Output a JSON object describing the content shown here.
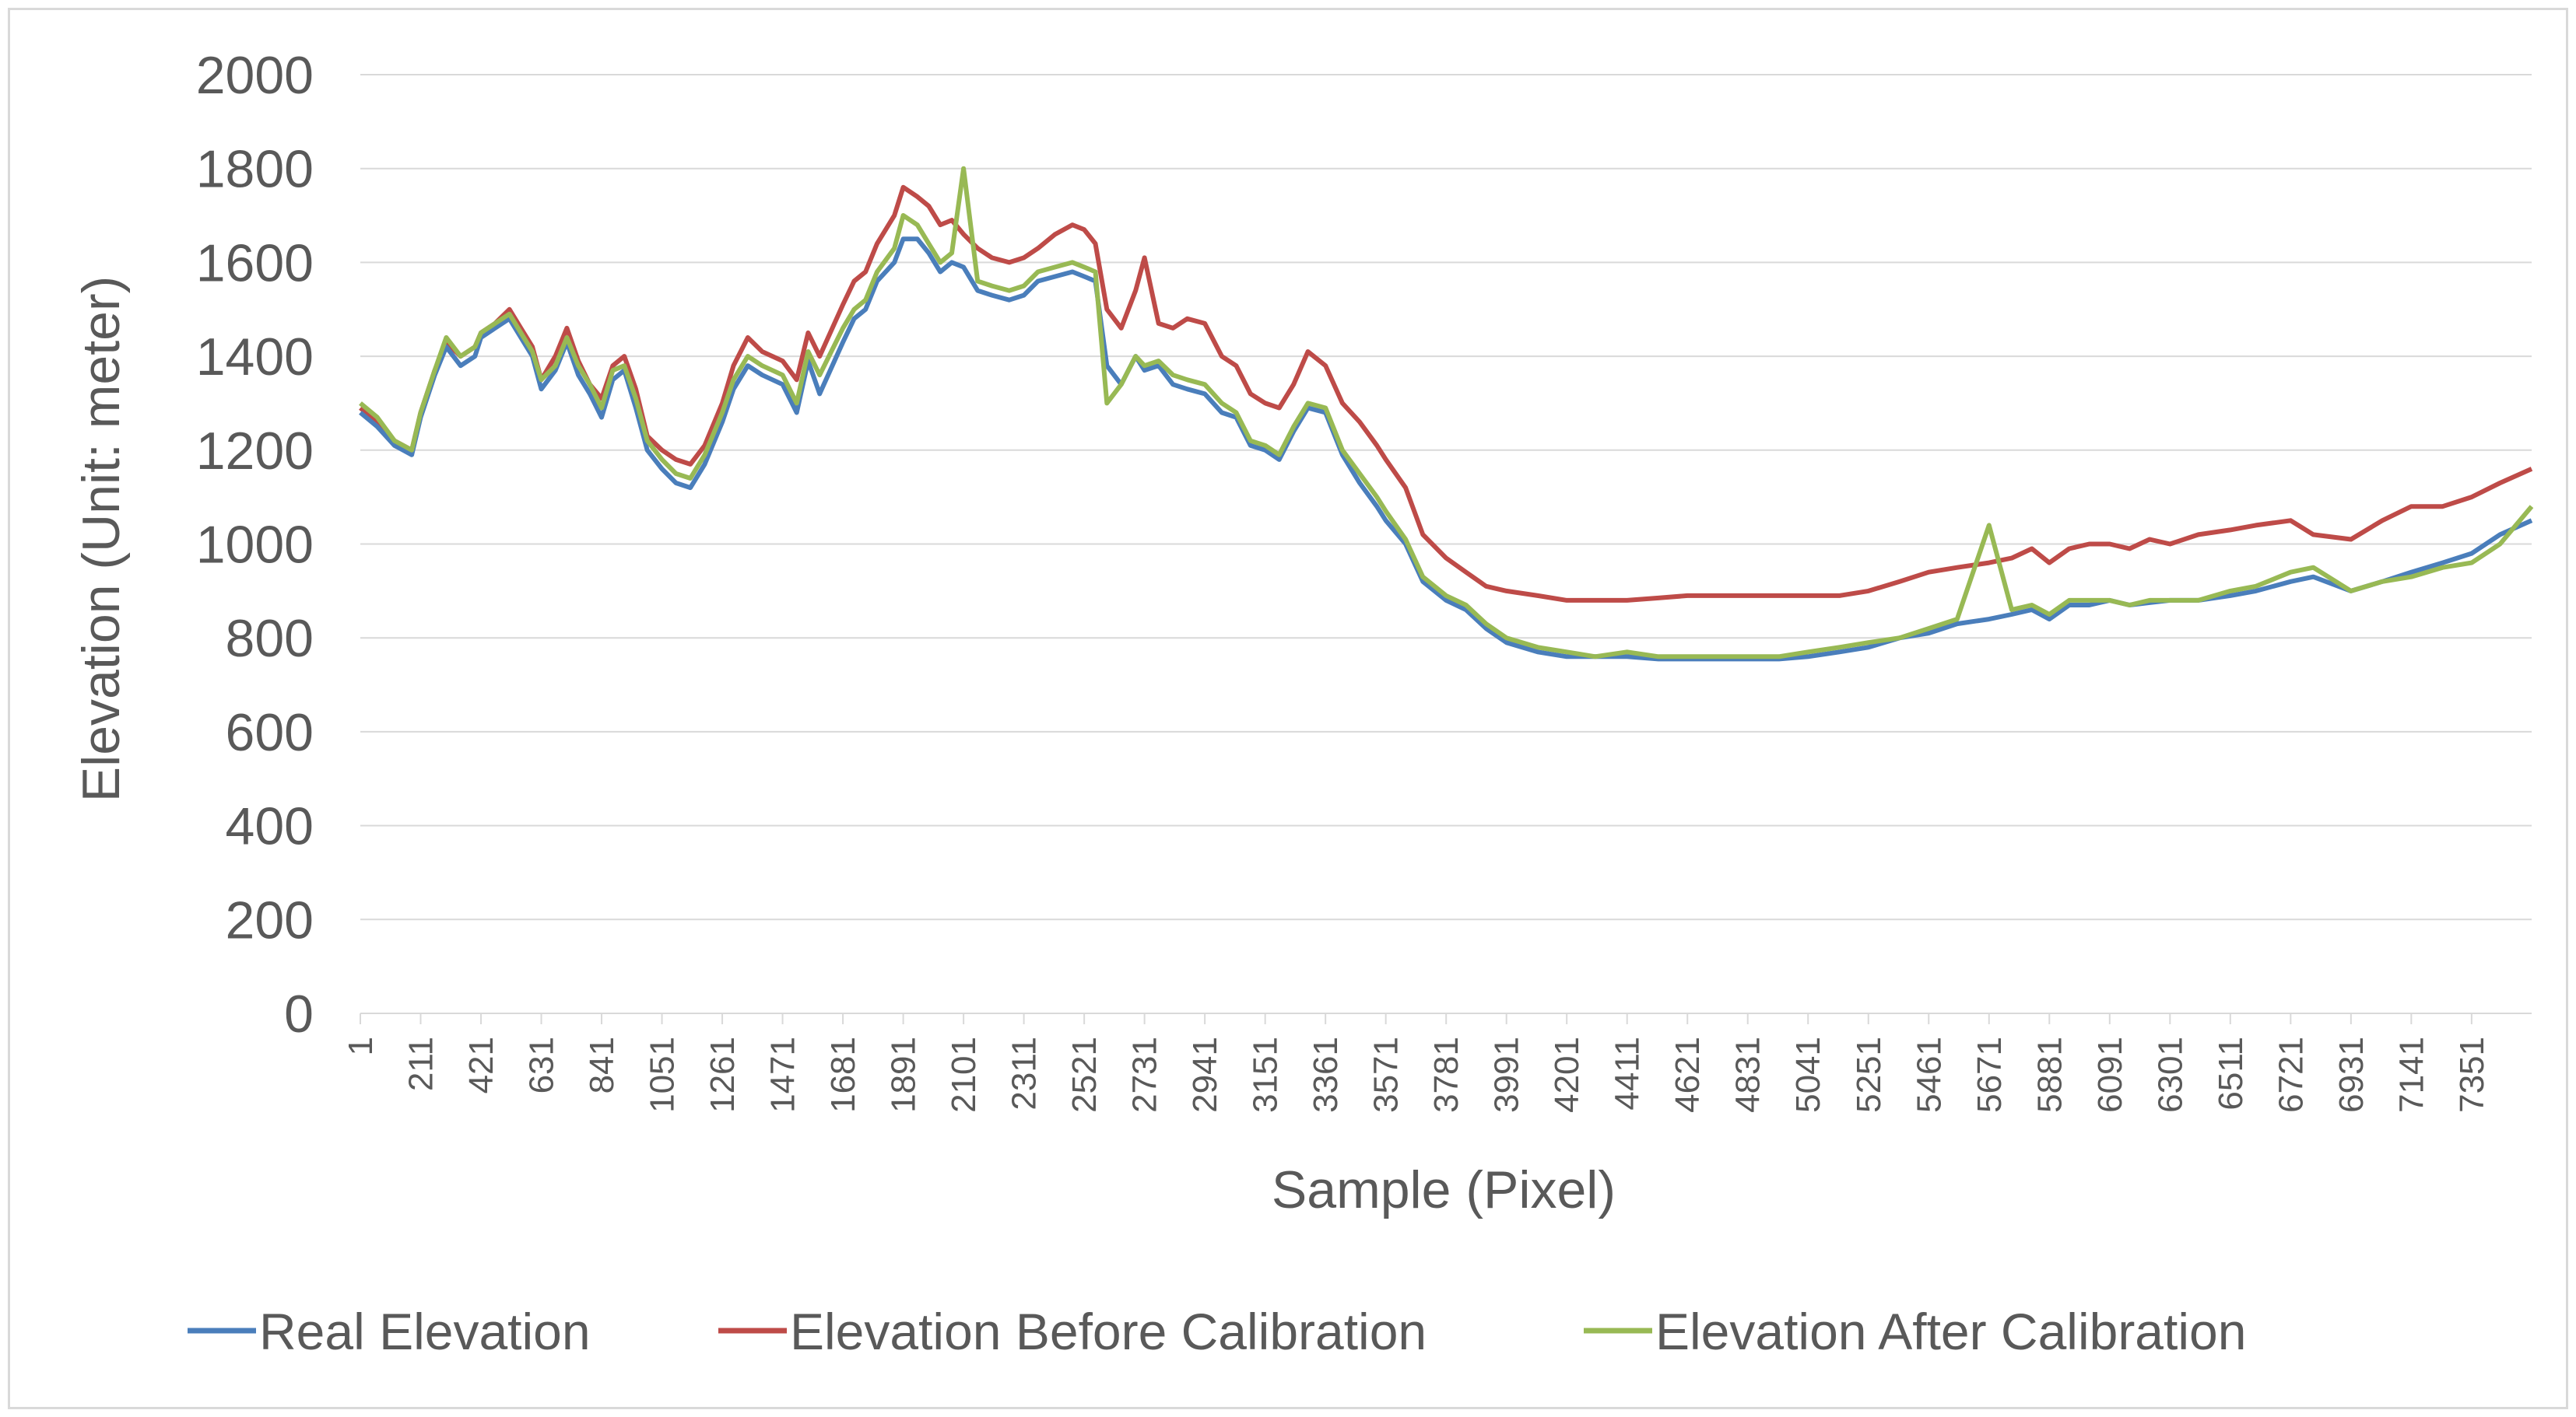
{
  "chart_data": {
    "type": "line",
    "title": "",
    "xlabel": "Sample (Pixel)",
    "ylabel": "Elevation (Unit: meter)",
    "ylim": [
      0,
      2000
    ],
    "xlim": [
      1,
      7560
    ],
    "yticks": [
      0,
      200,
      400,
      600,
      800,
      1000,
      1200,
      1400,
      1600,
      1800,
      2000
    ],
    "xticks": [
      "1",
      "211",
      "421",
      "631",
      "841",
      "1051",
      "1261",
      "1471",
      "1681",
      "1891",
      "2101",
      "2311",
      "2521",
      "2731",
      "2941",
      "3151",
      "3361",
      "3571",
      "3781",
      "3991",
      "4201",
      "4411",
      "4621",
      "4831",
      "5041",
      "5251",
      "5461",
      "5671",
      "5881",
      "6091",
      "6301",
      "6511",
      "6721",
      "6931",
      "7141",
      "7351"
    ],
    "grid": true,
    "legend": "bottom",
    "colors": {
      "real": "#4a7ebb",
      "before": "#be4b48",
      "after": "#98b954",
      "grid": "#d9d9d9",
      "text": "#595959"
    },
    "series": [
      {
        "name": "Real Elevation",
        "color": "#4a7ebb",
        "x": [
          1,
          60,
          120,
          180,
          211,
          260,
          300,
          350,
          400,
          421,
          470,
          520,
          560,
          600,
          631,
          680,
          720,
          760,
          800,
          841,
          880,
          920,
          960,
          1000,
          1051,
          1100,
          1150,
          1200,
          1261,
          1300,
          1350,
          1400,
          1471,
          1520,
          1560,
          1600,
          1681,
          1720,
          1760,
          1800,
          1860,
          1891,
          1940,
          1980,
          2020,
          2060,
          2101,
          2150,
          2200,
          2260,
          2311,
          2360,
          2420,
          2480,
          2521,
          2560,
          2600,
          2650,
          2700,
          2731,
          2780,
          2830,
          2880,
          2941,
          3000,
          3050,
          3100,
          3151,
          3200,
          3250,
          3300,
          3361,
          3420,
          3480,
          3540,
          3571,
          3640,
          3700,
          3781,
          3850,
          3920,
          3991,
          4100,
          4201,
          4300,
          4411,
          4520,
          4621,
          4731,
          4831,
          4940,
          5041,
          5150,
          5251,
          5360,
          5461,
          5560,
          5671,
          5750,
          5820,
          5881,
          5950,
          6020,
          6091,
          6160,
          6230,
          6301,
          6400,
          6511,
          6600,
          6721,
          6800,
          6931,
          7040,
          7141,
          7250,
          7351,
          7450,
          7560
        ],
        "values": [
          1280,
          1250,
          1210,
          1190,
          1270,
          1360,
          1420,
          1380,
          1400,
          1440,
          1460,
          1480,
          1440,
          1400,
          1330,
          1370,
          1430,
          1360,
          1320,
          1270,
          1350,
          1370,
          1290,
          1200,
          1160,
          1130,
          1120,
          1170,
          1260,
          1330,
          1380,
          1360,
          1340,
          1280,
          1390,
          1320,
          1430,
          1480,
          1500,
          1560,
          1600,
          1650,
          1650,
          1620,
          1580,
          1600,
          1590,
          1540,
          1530,
          1520,
          1530,
          1560,
          1570,
          1580,
          1570,
          1560,
          1380,
          1340,
          1400,
          1370,
          1380,
          1340,
          1330,
          1320,
          1280,
          1270,
          1210,
          1200,
          1180,
          1240,
          1290,
          1280,
          1190,
          1130,
          1080,
          1050,
          1000,
          920,
          880,
          860,
          820,
          790,
          770,
          760,
          760,
          760,
          755,
          755,
          755,
          755,
          755,
          760,
          770,
          780,
          800,
          810,
          830,
          840,
          850,
          860,
          840,
          870,
          870,
          880,
          870,
          875,
          880,
          880,
          890,
          900,
          920,
          930,
          900,
          920,
          940,
          960,
          980,
          1020,
          1050
        ]
      },
      {
        "name": "Elevation Before Calibration",
        "color": "#be4b48",
        "x": [
          1,
          60,
          120,
          180,
          211,
          260,
          300,
          350,
          400,
          421,
          470,
          520,
          560,
          600,
          631,
          680,
          720,
          760,
          800,
          841,
          880,
          920,
          960,
          1000,
          1051,
          1100,
          1150,
          1200,
          1261,
          1300,
          1350,
          1400,
          1471,
          1520,
          1560,
          1600,
          1681,
          1720,
          1760,
          1800,
          1860,
          1891,
          1940,
          1980,
          2020,
          2060,
          2101,
          2150,
          2200,
          2260,
          2311,
          2360,
          2420,
          2480,
          2521,
          2560,
          2600,
          2650,
          2700,
          2731,
          2780,
          2830,
          2880,
          2941,
          3000,
          3050,
          3100,
          3151,
          3200,
          3250,
          3300,
          3361,
          3420,
          3480,
          3540,
          3571,
          3640,
          3700,
          3781,
          3850,
          3920,
          3991,
          4100,
          4201,
          4300,
          4411,
          4520,
          4621,
          4731,
          4831,
          4940,
          5041,
          5150,
          5251,
          5360,
          5461,
          5560,
          5671,
          5750,
          5820,
          5881,
          5950,
          6020,
          6091,
          6160,
          6230,
          6301,
          6400,
          6511,
          6600,
          6721,
          6800,
          6931,
          7040,
          7141,
          7250,
          7351,
          7450,
          7560
        ],
        "values": [
          1290,
          1260,
          1220,
          1200,
          1280,
          1370,
          1430,
          1400,
          1420,
          1450,
          1470,
          1500,
          1460,
          1420,
          1350,
          1400,
          1460,
          1390,
          1340,
          1310,
          1380,
          1400,
          1330,
          1230,
          1200,
          1180,
          1170,
          1210,
          1300,
          1380,
          1440,
          1410,
          1390,
          1350,
          1450,
          1400,
          1510,
          1560,
          1580,
          1640,
          1700,
          1760,
          1740,
          1720,
          1680,
          1690,
          1660,
          1630,
          1610,
          1600,
          1610,
          1630,
          1660,
          1680,
          1670,
          1640,
          1500,
          1460,
          1540,
          1610,
          1470,
          1460,
          1480,
          1470,
          1400,
          1380,
          1320,
          1300,
          1290,
          1340,
          1410,
          1380,
          1300,
          1260,
          1210,
          1180,
          1120,
          1020,
          970,
          940,
          910,
          900,
          890,
          880,
          880,
          880,
          885,
          890,
          890,
          890,
          890,
          890,
          890,
          900,
          920,
          940,
          950,
          960,
          970,
          990,
          960,
          990,
          1000,
          1000,
          990,
          1010,
          1000,
          1020,
          1030,
          1040,
          1050,
          1020,
          1010,
          1050,
          1080,
          1080,
          1100,
          1130,
          1160
        ]
      },
      {
        "name": "Elevation After Calibration",
        "color": "#98b954",
        "x": [
          1,
          60,
          120,
          180,
          211,
          260,
          300,
          350,
          400,
          421,
          470,
          520,
          560,
          600,
          631,
          680,
          720,
          760,
          800,
          841,
          880,
          920,
          960,
          1000,
          1051,
          1100,
          1150,
          1200,
          1261,
          1300,
          1350,
          1400,
          1471,
          1520,
          1560,
          1600,
          1681,
          1720,
          1760,
          1800,
          1860,
          1891,
          1940,
          1980,
          2020,
          2060,
          2101,
          2150,
          2200,
          2260,
          2311,
          2360,
          2420,
          2480,
          2521,
          2560,
          2600,
          2650,
          2700,
          2731,
          2780,
          2830,
          2880,
          2941,
          3000,
          3050,
          3100,
          3151,
          3200,
          3250,
          3300,
          3361,
          3420,
          3480,
          3540,
          3571,
          3640,
          3700,
          3781,
          3850,
          3920,
          3991,
          4100,
          4201,
          4300,
          4411,
          4520,
          4621,
          4731,
          4831,
          4940,
          5041,
          5150,
          5251,
          5360,
          5461,
          5560,
          5671,
          5750,
          5820,
          5881,
          5950,
          6020,
          6091,
          6160,
          6230,
          6301,
          6400,
          6511,
          6600,
          6721,
          6800,
          6931,
          7040,
          7141,
          7250,
          7351,
          7450,
          7560
        ],
        "values": [
          1300,
          1270,
          1220,
          1200,
          1280,
          1370,
          1440,
          1400,
          1420,
          1450,
          1470,
          1490,
          1450,
          1410,
          1350,
          1380,
          1440,
          1380,
          1340,
          1290,
          1370,
          1380,
          1310,
          1220,
          1180,
          1150,
          1140,
          1190,
          1280,
          1350,
          1400,
          1380,
          1360,
          1300,
          1410,
          1360,
          1460,
          1500,
          1520,
          1580,
          1630,
          1700,
          1680,
          1640,
          1600,
          1620,
          1800,
          1560,
          1550,
          1540,
          1550,
          1580,
          1590,
          1600,
          1590,
          1580,
          1300,
          1340,
          1400,
          1380,
          1390,
          1360,
          1350,
          1340,
          1300,
          1280,
          1220,
          1210,
          1190,
          1250,
          1300,
          1290,
          1200,
          1150,
          1100,
          1070,
          1010,
          930,
          890,
          870,
          830,
          800,
          780,
          770,
          760,
          770,
          760,
          760,
          760,
          760,
          760,
          770,
          780,
          790,
          800,
          820,
          840,
          1040,
          860,
          870,
          850,
          880,
          880,
          880,
          870,
          880,
          880,
          880,
          900,
          910,
          940,
          950,
          900,
          920,
          930,
          950,
          960,
          1000,
          1080
        ]
      }
    ]
  }
}
